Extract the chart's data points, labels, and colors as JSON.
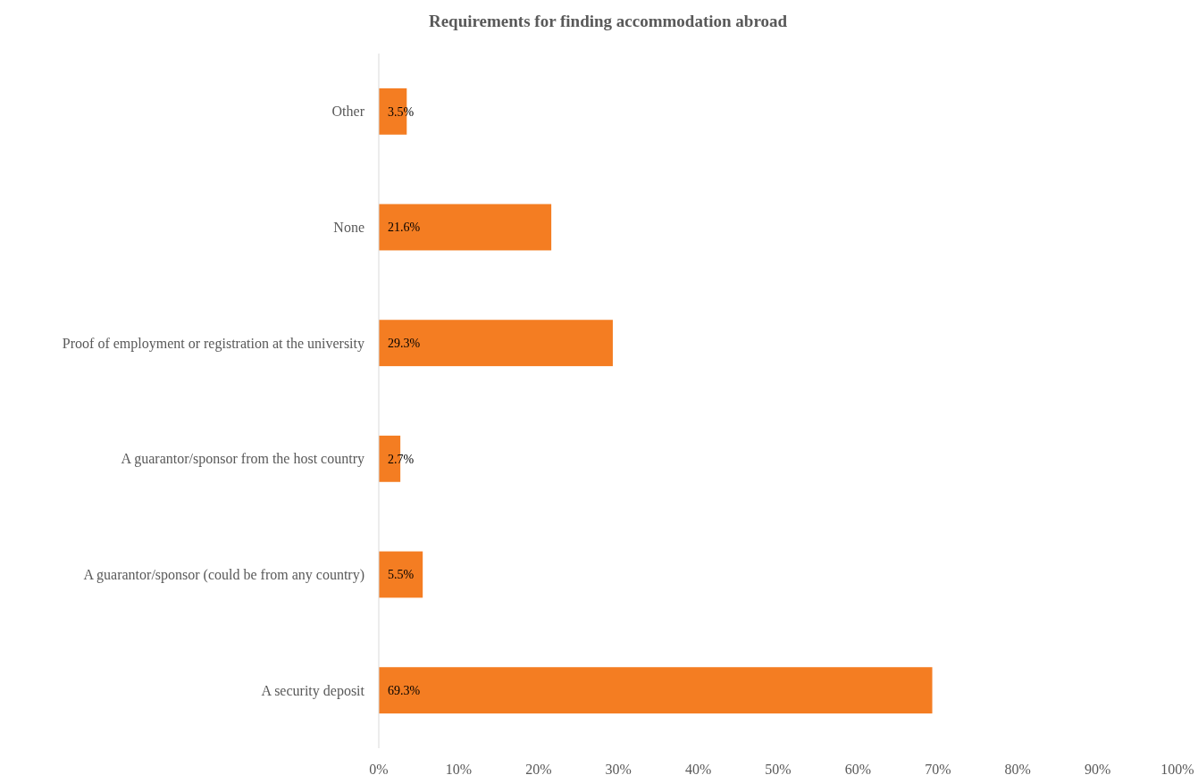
{
  "chart_data": {
    "type": "bar",
    "orientation": "horizontal",
    "title": "Requirements for finding accommodation abroad",
    "categories": [
      "Other",
      "None",
      "Proof of employment or registration at the university",
      "A guarantor/sponsor from the host country",
      "A guarantor/sponsor (could be from any country)",
      "A security deposit"
    ],
    "values": [
      3.5,
      21.6,
      29.3,
      2.7,
      5.5,
      69.3
    ],
    "value_labels": [
      "3.5%",
      "21.6%",
      "29.3%",
      "2.7%",
      "5.5%",
      "69.3%"
    ],
    "color": "#f47d22",
    "xlim": [
      0,
      100
    ],
    "xticks": [
      {
        "value": 0,
        "label": "0%"
      },
      {
        "value": 10,
        "label": "10%"
      },
      {
        "value": 20,
        "label": "20%"
      },
      {
        "value": 30,
        "label": "30%"
      },
      {
        "value": 40,
        "label": "40%"
      },
      {
        "value": 50,
        "label": "50%"
      },
      {
        "value": 60,
        "label": "60%"
      },
      {
        "value": 70,
        "label": "70%"
      },
      {
        "value": 80,
        "label": "80%"
      },
      {
        "value": 90,
        "label": "90%"
      },
      {
        "value": 100,
        "label": "100%"
      }
    ],
    "grid": false
  }
}
